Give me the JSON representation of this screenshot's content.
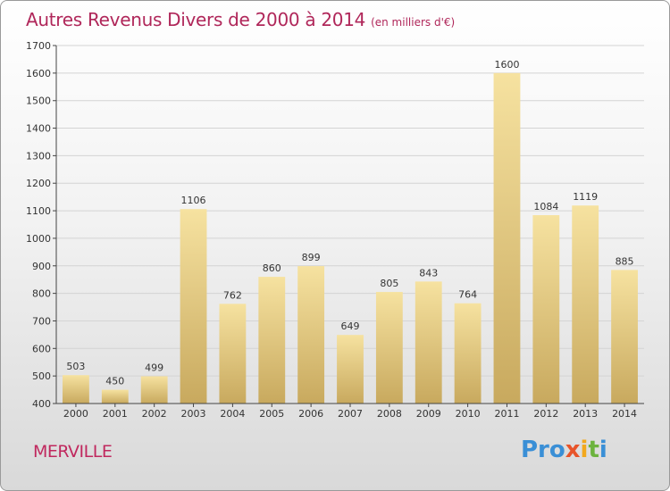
{
  "chart_data": {
    "type": "bar",
    "title": "Autres Revenus Divers de 2000 à 2014",
    "subtitle": "(en milliers d'€)",
    "categories": [
      "2000",
      "2001",
      "2002",
      "2003",
      "2004",
      "2005",
      "2006",
      "2007",
      "2008",
      "2009",
      "2010",
      "2011",
      "2012",
      "2013",
      "2014"
    ],
    "values": [
      503,
      450,
      499,
      1106,
      762,
      860,
      899,
      649,
      805,
      843,
      764,
      1600,
      1084,
      1119,
      885
    ],
    "ylim": [
      400,
      1700
    ],
    "yticks": [
      400,
      500,
      600,
      700,
      800,
      900,
      1000,
      1100,
      1200,
      1300,
      1400,
      1500,
      1600,
      1700
    ],
    "grid": true,
    "colors": {
      "bar_top": "#f6e2a0",
      "bar_bottom": "#c8a95e",
      "title": "#b0275a"
    }
  },
  "footer": {
    "commune": "MERVILLE"
  },
  "logo": {
    "p1": "Pro",
    "p2": "x",
    "p3": "i",
    "p4": "t",
    "p5": "i"
  }
}
